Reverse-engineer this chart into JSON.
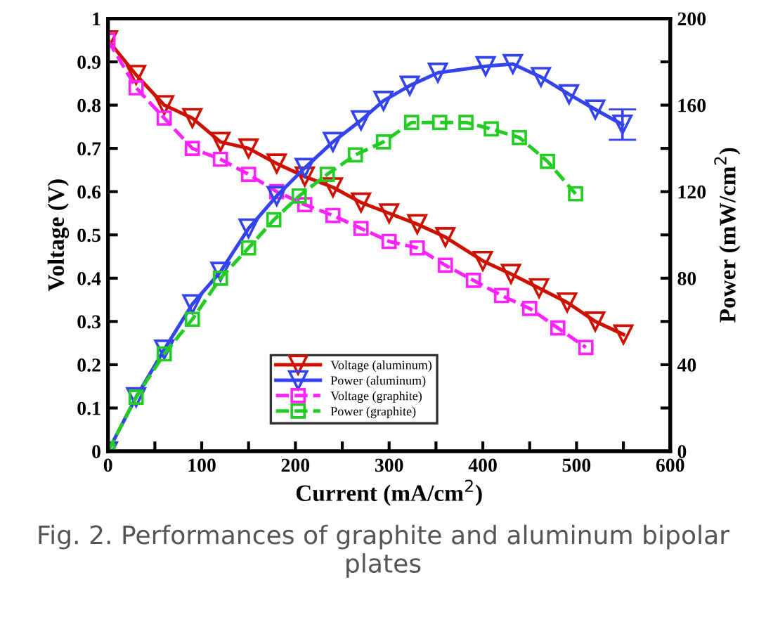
{
  "chart_data": {
    "type": "line",
    "xlabel": "Current (mA/cm$^{2}$)",
    "ylabel": "Voltage (V)",
    "y2label": "Power (mW/cm$^{2}$)",
    "xlim": [
      0,
      600
    ],
    "ylim": [
      0,
      1
    ],
    "y2lim": [
      0,
      200
    ],
    "xticks": [
      0,
      {
        "value": 50,
        "label": null
      },
      100,
      {
        "value": 150,
        "label": null
      },
      200,
      {
        "value": 250,
        "label": null
      },
      300,
      {
        "value": 350,
        "label": null
      },
      400,
      {
        "value": 450,
        "label": null
      },
      500,
      {
        "value": 550,
        "label": null
      },
      600
    ],
    "yticks": [
      0,
      0.1,
      0.2,
      0.3,
      0.4,
      0.5,
      0.6,
      0.7,
      0.8,
      0.9,
      1
    ],
    "y2ticks": [
      0,
      {
        "value": 20,
        "label": null
      },
      40,
      {
        "value": 60,
        "label": null
      },
      80,
      {
        "value": 100,
        "label": null
      },
      120,
      {
        "value": 140,
        "label": null
      },
      160,
      {
        "value": 180,
        "label": null
      },
      200
    ],
    "grid": false,
    "legend": "bottom",
    "series": [
      {
        "name": "Voltage (aluminum)",
        "color": "#cc1100",
        "marker": "triangle",
        "line_style": "solid",
        "x": [
          0,
          30,
          60,
          90,
          120,
          150,
          180,
          210,
          240,
          270,
          300,
          330,
          360,
          400,
          430,
          460,
          490,
          520,
          550
        ],
        "values": [
          0.95,
          0.87,
          0.8,
          0.77,
          0.715,
          0.7,
          0.665,
          0.635,
          0.61,
          0.575,
          0.55,
          0.525,
          0.495,
          0.44,
          0.41,
          0.377,
          0.344,
          0.3,
          0.27
        ]
      },
      {
        "name": "Power (aluminum)",
        "color": "#3344ee",
        "marker": "triangle",
        "line_style": "solid",
        "axis": "y2",
        "x": [
          0,
          30,
          60,
          90,
          120,
          150,
          180,
          210,
          240,
          270,
          294,
          322,
          352,
          403,
          432,
          462,
          492,
          520,
          549
        ],
        "values": [
          0,
          25,
          47,
          68,
          83,
          103,
          118,
          131,
          143,
          153,
          162,
          169,
          175,
          178,
          179,
          173,
          165,
          158,
          151
        ],
        "errors": [
          null,
          null,
          null,
          null,
          null,
          null,
          null,
          null,
          null,
          null,
          null,
          null,
          null,
          null,
          null,
          null,
          null,
          null,
          7
        ]
      },
      {
        "name": "Voltage (graphite)",
        "color": "#ff22ff",
        "marker": "square",
        "line_style": "dashed",
        "x": [
          0,
          30,
          60,
          90,
          120,
          150,
          180,
          210,
          240,
          270,
          300,
          330,
          360,
          390,
          420,
          450,
          480,
          510
        ],
        "values": [
          0.95,
          0.84,
          0.77,
          0.7,
          0.675,
          0.64,
          0.6,
          0.57,
          0.545,
          0.515,
          0.485,
          0.47,
          0.43,
          0.395,
          0.36,
          0.33,
          0.285,
          0.24
        ]
      },
      {
        "name": "Power (graphite)",
        "color": "#22cc22",
        "marker": "square",
        "line_style": "dashed",
        "axis": "y2",
        "x": [
          0,
          30,
          60,
          90,
          120,
          150,
          177,
          204,
          234,
          264,
          294,
          324,
          354,
          382,
          409,
          439,
          469,
          499
        ],
        "values": [
          0,
          25,
          45,
          61,
          80,
          94,
          107,
          118,
          128,
          137,
          143,
          152,
          152,
          152,
          149,
          145,
          134,
          119
        ]
      }
    ],
    "annotations": [
      "Fig. 2. Performances of graphite and aluminum bipolar plates"
    ]
  }
}
